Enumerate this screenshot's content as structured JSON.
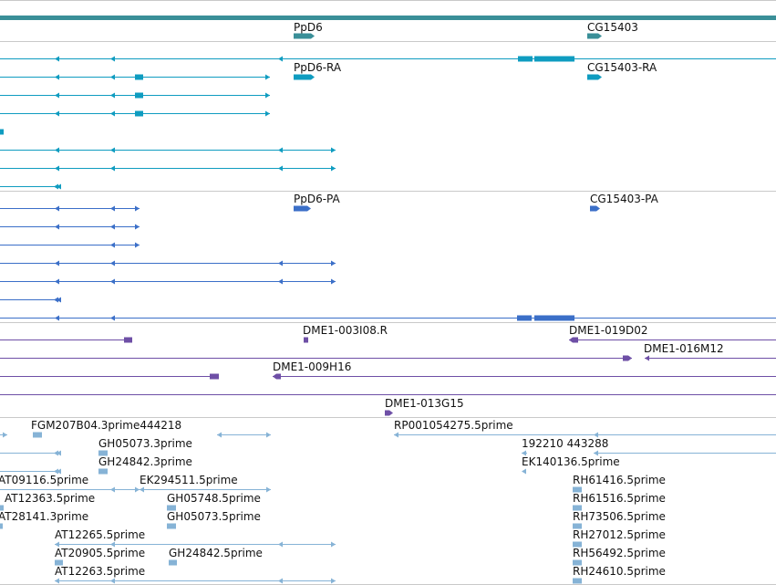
{
  "colors": {
    "genes": "#3a8f98",
    "transcripts": "#0f9cc0",
    "proteins": "#3b6fc8",
    "cdna_clones": "#6e4fa6",
    "ests": "#86b3d6",
    "separator": "#c9c9c9"
  },
  "genes": {
    "labels": [
      "PpD6",
      "CG15403"
    ]
  },
  "transcripts": {
    "labels": [
      "PpD6-RA",
      "CG15403-RA"
    ]
  },
  "proteins": {
    "labels": [
      "PpD6-PA",
      "CG15403-PA"
    ]
  },
  "cdna_clones": {
    "labels": [
      "DME1-003I08.R",
      "DME1-019D02",
      "DME1-016M12",
      "DME1-009H16",
      "DME1-013G15"
    ]
  },
  "ests": {
    "labels": [
      "FGM207B04.3prime444218",
      "RP001054275.5prime",
      "GH05073.3prime",
      "192210 443288",
      "GH24842.3prime",
      "EK140136.5prime",
      "AT09116.5prime",
      "EK294511.5prime",
      "RH61416.5prime",
      "AT12363.5prime",
      "GH05748.5prime",
      "RH61516.5prime",
      "AT28141.3prime",
      "GH05073.5prime",
      "RH73506.5prime",
      "AT12265.5prime",
      "RH27012.5prime",
      "AT20905.5prime",
      "GH24842.5prime",
      "RH56492.5prime",
      "AT12263.5prime",
      "RH24610.5prime"
    ]
  }
}
